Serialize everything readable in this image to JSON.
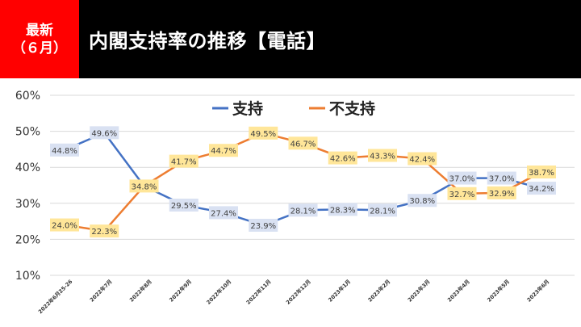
{
  "header": {
    "badge_line1": "最新",
    "badge_line2": "（６月）",
    "title": "内閣支持率の推移【電話】",
    "badge_color": "#ff0000",
    "bar_color": "#000000"
  },
  "chart_data": {
    "type": "line",
    "categories": [
      "2022年6月25-26",
      "2022年7月",
      "2022年8月",
      "2022年9月",
      "2022年10月",
      "2022年11月",
      "2022年12月",
      "2023年1月",
      "2023年2月",
      "2023年3月",
      "2023年4月",
      "2023年5月",
      "2023年6月"
    ],
    "series": [
      {
        "name": "支持",
        "color": "#4472c4",
        "label_bg": "#d9e1f2",
        "values": [
          44.8,
          49.6,
          34.8,
          29.5,
          27.4,
          23.9,
          28.1,
          28.3,
          28.1,
          30.8,
          37.0,
          37.0,
          34.2
        ],
        "labels": [
          "44.8%",
          "49.6%",
          "",
          "29.5%",
          "27.4%",
          "23.9%",
          "28.1%",
          "28.3%",
          "28.1%",
          "30.8%",
          "37.0%",
          "37.0%",
          "34.2%"
        ]
      },
      {
        "name": "不支持",
        "color": "#ed7d31",
        "label_bg": "#ffe699",
        "values": [
          24.0,
          22.3,
          34.8,
          41.7,
          44.7,
          49.5,
          46.7,
          42.6,
          43.3,
          42.4,
          32.7,
          32.9,
          38.7
        ],
        "labels": [
          "24.0%",
          "22.3%",
          "34.8%",
          "41.7%",
          "44.7%",
          "49.5%",
          "46.7%",
          "42.6%",
          "43.3%",
          "42.4%",
          "32.7%",
          "32.9%",
          "38.7%"
        ]
      }
    ],
    "yticks": [
      "10%",
      "20%",
      "30%",
      "40%",
      "50%",
      "60%"
    ],
    "ylim": [
      10,
      60
    ],
    "legend": "top-center",
    "grid": true
  }
}
